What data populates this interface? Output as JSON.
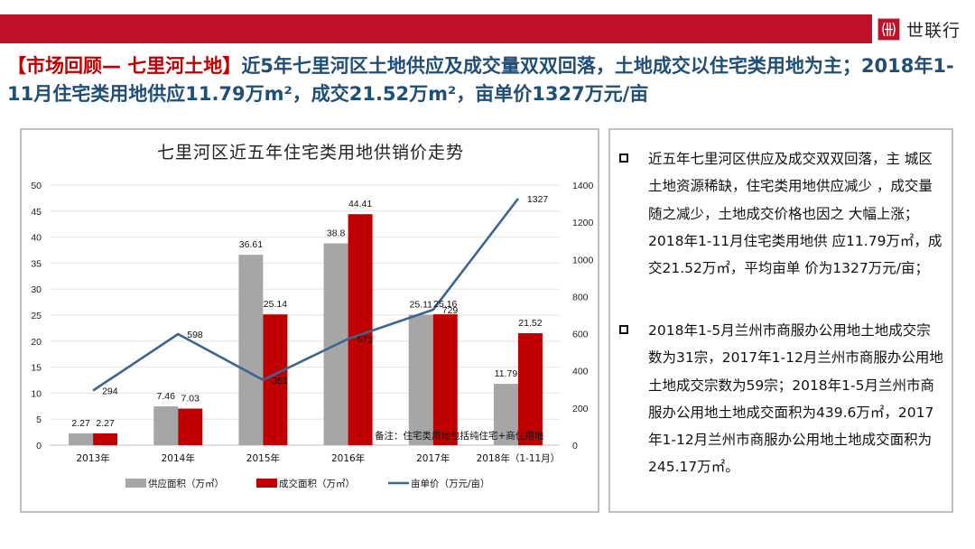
{
  "header": {
    "brand_name": "世联行",
    "brand_color": "#c0102a"
  },
  "headline": {
    "tag": "【市场回顾— 七里河土地】",
    "text": "近5年七里河区土地供应及成交量双双回落，土地成交以住宅类用地为主；2018年1-11月住宅类用地供应11.79万m²，成交21.52万m²，亩单价1327万元/亩"
  },
  "chart_data": {
    "type": "bar",
    "title": "七里河区近五年住宅类用地供销价走势",
    "categories": [
      "2013年",
      "2014年",
      "2015年",
      "2016年",
      "2017年",
      "2018年（1-11月）"
    ],
    "series": [
      {
        "name": "供应面积（万㎡）",
        "type": "bar",
        "axis": "left",
        "color": "#a6a6a6",
        "values": [
          2.27,
          7.46,
          36.61,
          38.8,
          25.11,
          11.79
        ]
      },
      {
        "name": "成交面积（万㎡）",
        "type": "bar",
        "axis": "left",
        "color": "#c00000",
        "values": [
          2.27,
          7.03,
          25.14,
          44.41,
          25.16,
          21.52
        ]
      },
      {
        "name": "亩单价（万元/亩）",
        "type": "line",
        "axis": "right",
        "color": "#3d6594",
        "values": [
          294,
          598,
          351,
          572,
          729,
          1327
        ]
      }
    ],
    "left_axis": {
      "min": 0,
      "max": 50,
      "ticks": [
        0,
        5,
        10,
        15,
        20,
        25,
        30,
        35,
        40,
        45,
        50
      ]
    },
    "right_axis": {
      "min": 0,
      "max": 1400,
      "ticks": [
        0,
        200,
        400,
        600,
        800,
        1000,
        1200,
        1400
      ]
    },
    "grid": true,
    "legend_position": "bottom",
    "annotation": "备注：住宅类用地包括纯住宅+商住用地"
  },
  "panel": {
    "bullets": [
      {
        "text": "近五年七里河区供应及成交双双回落，主    城区土地资源稀缺，住宅类用地供应减少    ，成交量随之减少，土地成交价格也因之   大幅上涨；2018年1-11月住宅类用地供    应11.79万㎡，成交21.52万㎡，平均亩单 价为1327万元/亩；"
      },
      {
        "text": "2018年1-5月兰州市商服办公用地土地成交宗数为31宗，2017年1-12月兰州市商服办公用地土地成交宗数为59宗；2018年1-5月兰州市商服办公用地土地成交面积为439.6万㎡，2017年1-12月兰州市商服办公用地土地成交面积为245.17万㎡。"
      }
    ]
  }
}
